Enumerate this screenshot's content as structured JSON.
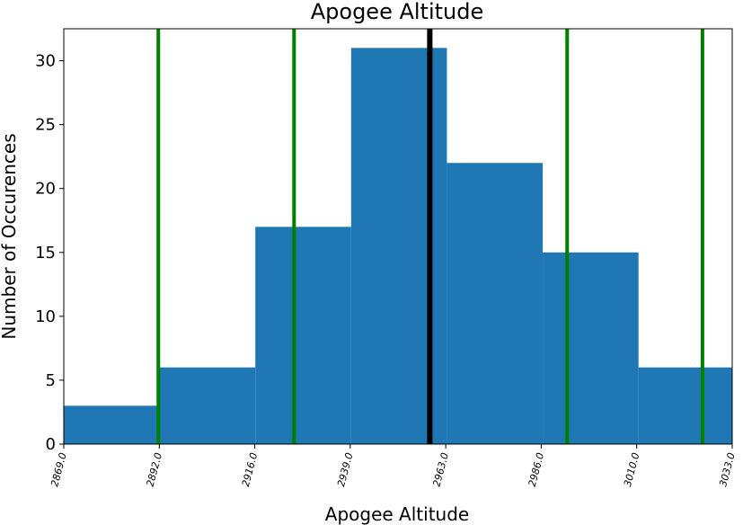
{
  "chart_data": {
    "type": "bar",
    "title": "Apogee Altitude",
    "xlabel": "Apogee Altitude",
    "ylabel": "Number of Occurences",
    "bin_edges": [
      2869.0,
      2892.5,
      2916.0,
      2939.5,
      2963.0,
      2986.5,
      3010.0,
      3033.0
    ],
    "values": [
      3,
      6,
      17,
      31,
      22,
      15,
      6
    ],
    "bar_color": "#1f77b4",
    "xlim": [
      2869.0,
      3033.0
    ],
    "ylim": [
      0,
      32.5
    ],
    "xtick_labels": [
      "2869.0",
      "2892.0",
      "2916.0",
      "2939.0",
      "2963.0",
      "2986.0",
      "3010.0",
      "3033.0"
    ],
    "yticks": [
      0,
      5,
      10,
      15,
      20,
      25,
      30
    ],
    "vertical_lines": [
      {
        "x": 2892.2,
        "color": "#008000",
        "role": "sigma"
      },
      {
        "x": 2925.5,
        "color": "#008000",
        "role": "sigma"
      },
      {
        "x": 2958.8,
        "color": "#000000",
        "role": "mean"
      },
      {
        "x": 2992.5,
        "color": "#008000",
        "role": "sigma"
      },
      {
        "x": 3025.7,
        "color": "#008000",
        "role": "sigma"
      }
    ],
    "grid": false,
    "legend": "none"
  }
}
